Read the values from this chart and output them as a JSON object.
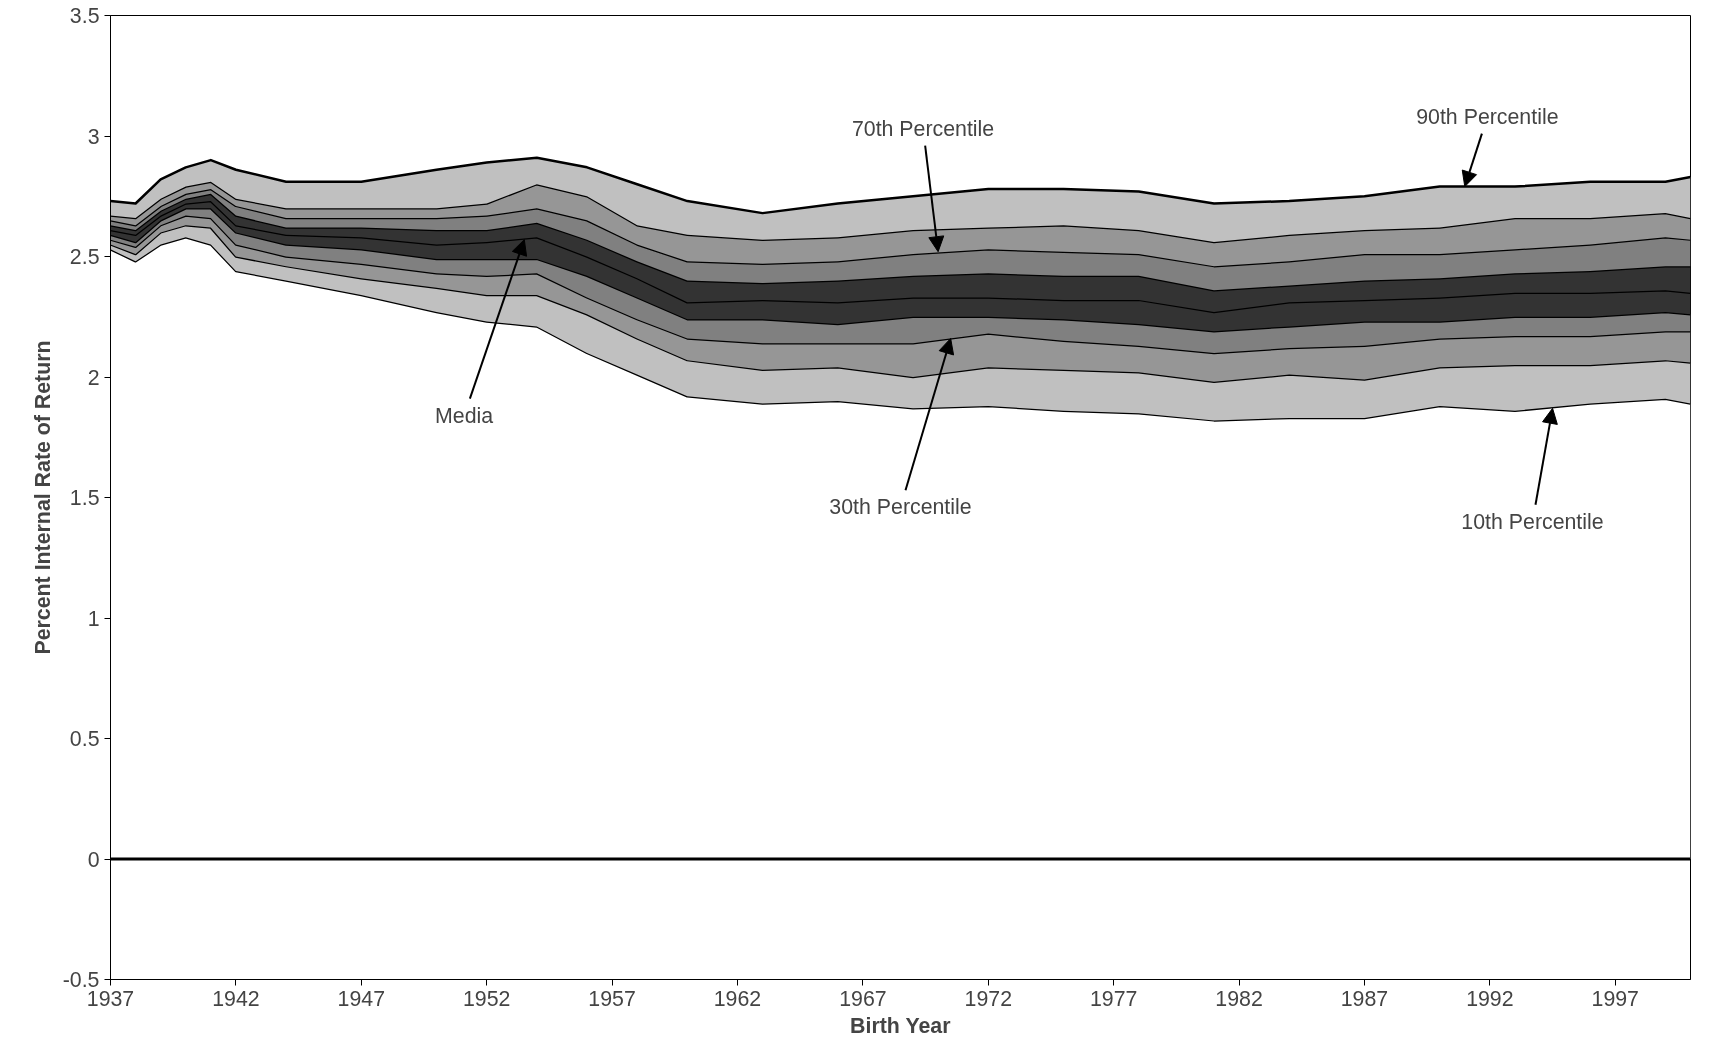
{
  "chart_data": {
    "type": "area",
    "xlabel": "Birth Year",
    "ylabel": "Percent Internal Rate of Return",
    "x": [
      1937,
      1938,
      1939,
      1940,
      1941,
      1942,
      1944,
      1947,
      1950,
      1952,
      1954,
      1956,
      1958,
      1960,
      1963,
      1966,
      1969,
      1972,
      1975,
      1978,
      1981,
      1984,
      1987,
      1990,
      1993,
      1996,
      1999,
      2000
    ],
    "series": [
      {
        "color": "#ffffff",
        "values": [
          2.53,
          2.48,
          2.55,
          2.58,
          2.55,
          2.44,
          2.4,
          2.34,
          2.27,
          2.23,
          2.21,
          2.1,
          2.01,
          1.92,
          1.89,
          1.9,
          1.87,
          1.88,
          1.86,
          1.85,
          1.82,
          1.83,
          1.83,
          1.88,
          1.86,
          1.89,
          1.91,
          1.89
        ]
      },
      {
        "color": "#c0c0c0",
        "values": [
          2.55,
          2.51,
          2.6,
          2.63,
          2.62,
          2.5,
          2.46,
          2.41,
          2.37,
          2.34,
          2.34,
          2.26,
          2.16,
          2.07,
          2.03,
          2.04,
          2.0,
          2.04,
          2.03,
          2.02,
          1.98,
          2.01,
          1.99,
          2.04,
          2.05,
          2.05,
          2.07,
          2.06
        ]
      },
      {
        "color": "#969696",
        "values": [
          2.57,
          2.54,
          2.63,
          2.67,
          2.66,
          2.55,
          2.5,
          2.47,
          2.43,
          2.42,
          2.43,
          2.33,
          2.24,
          2.16,
          2.14,
          2.14,
          2.14,
          2.18,
          2.15,
          2.13,
          2.1,
          2.12,
          2.13,
          2.16,
          2.17,
          2.17,
          2.19,
          2.19
        ]
      },
      {
        "color": "#808080",
        "values": [
          2.59,
          2.56,
          2.65,
          2.7,
          2.7,
          2.6,
          2.55,
          2.53,
          2.49,
          2.49,
          2.49,
          2.42,
          2.33,
          2.24,
          2.24,
          2.22,
          2.25,
          2.25,
          2.24,
          2.22,
          2.19,
          2.21,
          2.23,
          2.23,
          2.25,
          2.25,
          2.27,
          2.26
        ]
      },
      {
        "color": "#333333",
        "values": [
          2.61,
          2.59,
          2.67,
          2.72,
          2.73,
          2.63,
          2.59,
          2.58,
          2.55,
          2.56,
          2.58,
          2.5,
          2.41,
          2.31,
          2.32,
          2.31,
          2.33,
          2.33,
          2.32,
          2.32,
          2.27,
          2.31,
          2.32,
          2.33,
          2.35,
          2.35,
          2.36,
          2.35
        ]
      },
      {
        "color": "#333333",
        "values": [
          2.63,
          2.61,
          2.69,
          2.74,
          2.76,
          2.67,
          2.62,
          2.62,
          2.61,
          2.61,
          2.64,
          2.57,
          2.48,
          2.4,
          2.39,
          2.4,
          2.42,
          2.43,
          2.42,
          2.42,
          2.36,
          2.38,
          2.4,
          2.41,
          2.43,
          2.44,
          2.46,
          2.46
        ]
      },
      {
        "color": "#808080",
        "values": [
          2.65,
          2.63,
          2.71,
          2.76,
          2.78,
          2.71,
          2.66,
          2.66,
          2.66,
          2.67,
          2.7,
          2.65,
          2.55,
          2.48,
          2.47,
          2.48,
          2.51,
          2.53,
          2.52,
          2.51,
          2.46,
          2.48,
          2.51,
          2.51,
          2.53,
          2.55,
          2.58,
          2.57
        ]
      },
      {
        "color": "#969696",
        "values": [
          2.67,
          2.66,
          2.74,
          2.79,
          2.81,
          2.74,
          2.7,
          2.7,
          2.7,
          2.72,
          2.8,
          2.75,
          2.63,
          2.59,
          2.57,
          2.58,
          2.61,
          2.62,
          2.63,
          2.61,
          2.56,
          2.59,
          2.61,
          2.62,
          2.66,
          2.66,
          2.68,
          2.66
        ]
      },
      {
        "color": "#c0c0c0",
        "values": [
          2.73,
          2.72,
          2.82,
          2.87,
          2.9,
          2.86,
          2.81,
          2.81,
          2.86,
          2.89,
          2.91,
          2.87,
          2.8,
          2.73,
          2.68,
          2.72,
          2.75,
          2.78,
          2.78,
          2.77,
          2.72,
          2.73,
          2.75,
          2.79,
          2.79,
          2.81,
          2.81,
          2.83
        ]
      }
    ],
    "xlim": [
      1937,
      2000
    ],
    "xticks": [
      1937,
      1942,
      1947,
      1952,
      1957,
      1962,
      1967,
      1972,
      1977,
      1982,
      1987,
      1992,
      1997
    ],
    "ylim": [
      -0.5,
      3.5
    ],
    "yticks": [
      -0.5,
      0,
      0.5,
      1,
      1.5,
      2,
      2.5,
      3,
      3.5
    ],
    "ref_lines": [
      {
        "axis": "y",
        "value": 0,
        "color": "#000000"
      }
    ],
    "annotations": [
      {
        "text": "70th Percentile",
        "x": 1970,
        "y": 2.52
      },
      {
        "text": "90th Percentile",
        "x": 1991,
        "y": 2.79
      },
      {
        "text": "Media",
        "x": 1953.5,
        "y": 2.57
      },
      {
        "text": "30th Percentile",
        "x": 1970.5,
        "y": 2.16
      },
      {
        "text": "10th Percentile",
        "x": 1994.5,
        "y": 1.87
      }
    ]
  }
}
